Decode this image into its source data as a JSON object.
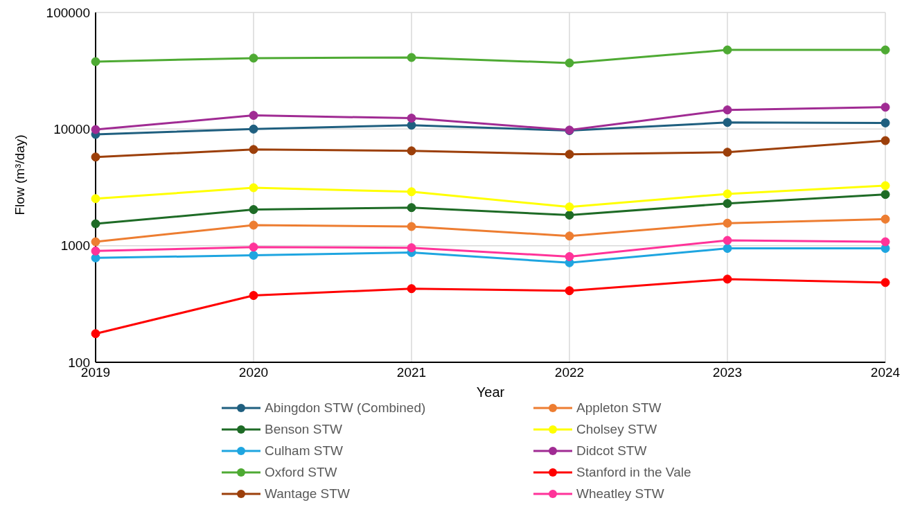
{
  "chart_data": {
    "type": "line",
    "xlabel": "Year",
    "ylabel": "Flow (m³/day)",
    "categories": [
      "2019",
      "2020",
      "2021",
      "2022",
      "2023",
      "2024"
    ],
    "log": "y",
    "ylim": [
      100,
      100000
    ],
    "yticks": [
      100,
      1000,
      10000,
      100000
    ],
    "grid": true,
    "legend": "bottom",
    "marker": "circle",
    "line_style": "solid",
    "series": [
      {
        "name": "Abingdon STW (Combined)",
        "color": "#1f5f7f",
        "values": [
          9000,
          10000,
          10800,
          9700,
          11400,
          11300
        ]
      },
      {
        "name": "Appleton STW",
        "color": "#ed7d31",
        "values": [
          1080,
          1500,
          1460,
          1210,
          1560,
          1690
        ]
      },
      {
        "name": "Benson STW",
        "color": "#1e6b26",
        "values": [
          1540,
          2040,
          2120,
          1830,
          2300,
          2750
        ]
      },
      {
        "name": "Cholsey STW",
        "color": "#ffff00",
        "values": [
          2530,
          3140,
          2900,
          2150,
          2780,
          3270
        ]
      },
      {
        "name": "Culham STW",
        "color": "#1ea5e0",
        "values": [
          785,
          828,
          875,
          714,
          948,
          948
        ]
      },
      {
        "name": "Didcot STW",
        "color": "#a02b93",
        "values": [
          9900,
          13100,
          12400,
          9800,
          14600,
          15400
        ]
      },
      {
        "name": "Oxford STW",
        "color": "#4eaa33",
        "values": [
          37900,
          40600,
          41100,
          36900,
          47700,
          47700
        ]
      },
      {
        "name": "Stanford in the Vale",
        "color": "#ff0000",
        "values": [
          176,
          374,
          428,
          411,
          517,
          483
        ]
      },
      {
        "name": "Wantage STW",
        "color": "#9c3f0a",
        "values": [
          5760,
          6680,
          6500,
          6080,
          6330,
          7960
        ]
      },
      {
        "name": "Wheatley STW",
        "color": "#ff3399",
        "values": [
          900,
          973,
          960,
          806,
          1110,
          1080
        ]
      }
    ]
  }
}
